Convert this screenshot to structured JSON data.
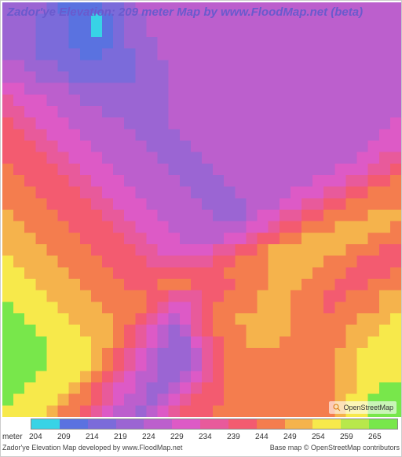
{
  "title": "Zador'ye Elevation: 209 meter Map by www.FloodMap.net (beta)",
  "osm_label": "OpenStreetMap",
  "footer": {
    "credit_left": "Zador'ye Elevation Map developed by www.FloodMap.net",
    "credit_right": "Base map © OpenStreetMap contributors"
  },
  "legend": {
    "unit": "meter",
    "ticks": [
      "204",
      "209",
      "214",
      "219",
      "224",
      "229",
      "234",
      "239",
      "244",
      "249",
      "254",
      "259",
      "265"
    ],
    "colors": [
      "#38d3e6",
      "#5a72e0",
      "#7b6bda",
      "#9b65d3",
      "#bc5fcd",
      "#dd5ac6",
      "#e85a9b",
      "#f35b70",
      "#f47d4e",
      "#f5b34c",
      "#f7e94b",
      "#b8e84b",
      "#78e74b"
    ]
  },
  "heatmap": {
    "type": "elevation-pixel-map",
    "grid_size": 36,
    "background_color": "#ffffff",
    "pixel_style": "blocky",
    "border_style": "dashed-partial",
    "border_color": "#888888",
    "rows": [
      "444432222334555555555555555555555555",
      "444333221234455555555555555555555555",
      "444333221234455555555555555555555555",
      "444333222234445555555555555555555555",
      "444333322333445555555555555555555555",
      "554443333333444555555555555555555555",
      "555444333333444555555555555555555555",
      "665555444444444555555555555555555555",
      "766655544444444555555555555555555555",
      "776665555444444555555555555555555555",
      "877666555554444555555555555555555556",
      "887766655555444455555555555555555566",
      "888776665555544445555555555555555666",
      "888877666555554444555555555555556677",
      "988887766655555444455555555555666778",
      "998888776665555544445555555566677889",
      "999888877666555554444555556667788999",
      "999988887766655555444455566778899999",
      "a99998888776665555544456677889999aaa",
      "aa9999888877666555555566788999aaaaa9",
      "aaa999988887766655556678899aaaaaa999",
      "aaaa99998888776666677889aaaaaaa99988",
      "baaaa9999888877777788999aaaaa9998888",
      "bbaaaa999988888888889999aaaa99988889",
      "bbbaaaa99998889998888999aaa999888999",
      "bbbbaaaa999998877788999aaa99988999aa",
      "cbbbbaaaa99998766789999aaa99989999aa",
      "ccbbbbaaaa99876567899aaaaa999999aaab",
      "cccbbbbaaa987654578999aaaa99999aaabb",
      "ccccbbbbaa987654467899aaa999999aabbb",
      "ccccbbbba987654445789999999999aabbbb",
      "ccccbbbba987654445789999999999aabbbb",
      "cccbbbba9876554456789999999999aabbbb",
      "ccbbbba98766544567889999999999aabbcc",
      "cbbbba998765545678889999999999abbccc",
      "bbbba9987655456788899999999999abbccc"
    ],
    "palette_map": {
      "1": "#38d3e6",
      "2": "#5a72e0",
      "3": "#7b6bda",
      "4": "#9b65d3",
      "5": "#bc5fcd",
      "6": "#dd5ac6",
      "7": "#e85a9b",
      "8": "#f35b70",
      "9": "#f47d4e",
      "a": "#f5b34c",
      "b": "#f7e94b",
      "c": "#78e74b"
    }
  }
}
